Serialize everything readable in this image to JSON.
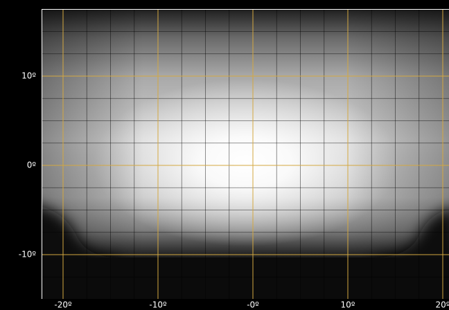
{
  "x_labels": [
    "-20º",
    "-10º",
    "-0º",
    "10º",
    "20º"
  ],
  "y_labels": [
    "10º",
    "0º",
    "-10º"
  ]
}
